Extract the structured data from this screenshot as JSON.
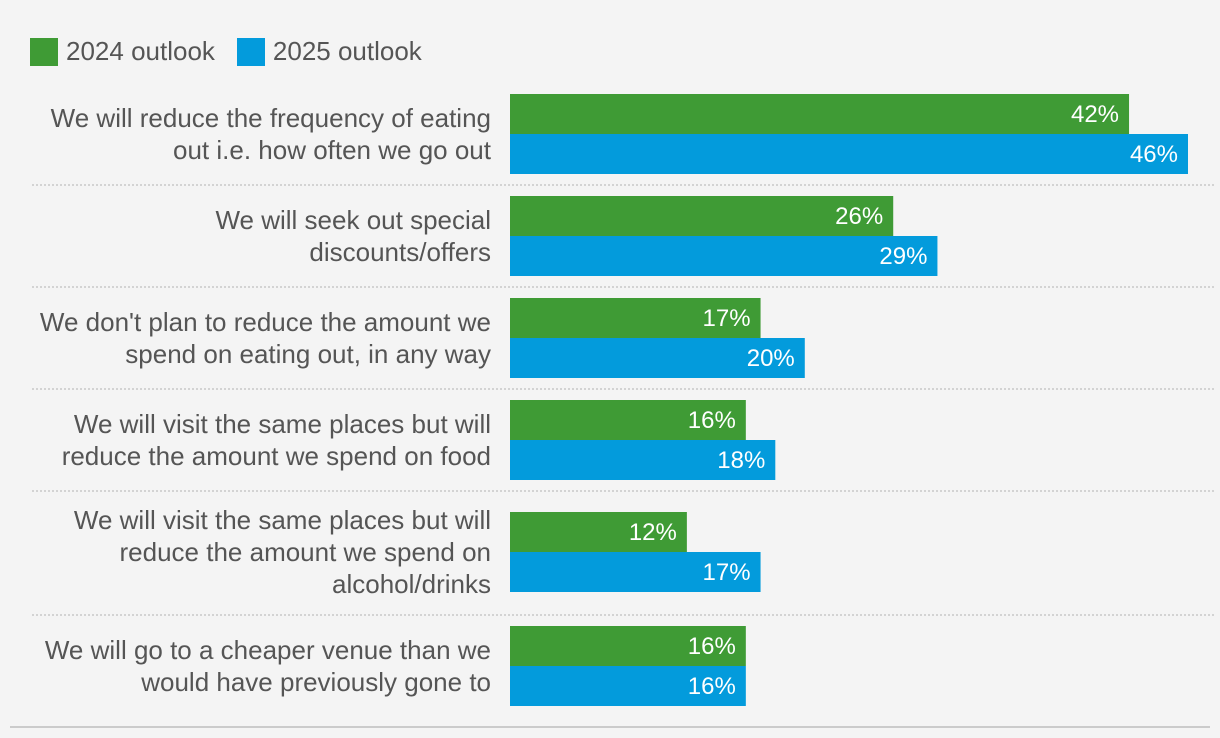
{
  "chart_data": {
    "type": "bar",
    "orientation": "horizontal",
    "categories": [
      [
        "We will reduce the frequency of eating",
        "out i.e. how often we go out"
      ],
      [
        "We will seek out special",
        "discounts/offers"
      ],
      [
        "We don't plan to reduce the amount we",
        "spend on eating out, in any way"
      ],
      [
        "We will visit the same places but will",
        "reduce the amount we spend on food"
      ],
      [
        "We will visit the same places but will",
        "reduce the amount we spend on",
        "alcohol/drinks"
      ],
      [
        "We will go to a cheaper venue than we",
        "would have previously gone to"
      ]
    ],
    "series": [
      {
        "name": "2024 outlook",
        "color": "#3f9b35",
        "values": [
          42,
          26,
          17,
          16,
          12,
          16
        ],
        "labels": [
          "42%",
          "26%",
          "17%",
          "16%",
          "12%",
          "16%"
        ]
      },
      {
        "name": "2025 outlook",
        "color": "#039bdc",
        "values": [
          46,
          29,
          20,
          18,
          17,
          16
        ],
        "labels": [
          "46%",
          "29%",
          "20%",
          "18%",
          "17%",
          "16%"
        ]
      }
    ],
    "xlim": [
      0,
      46
    ],
    "legend_position": "top-left",
    "grid": false
  }
}
